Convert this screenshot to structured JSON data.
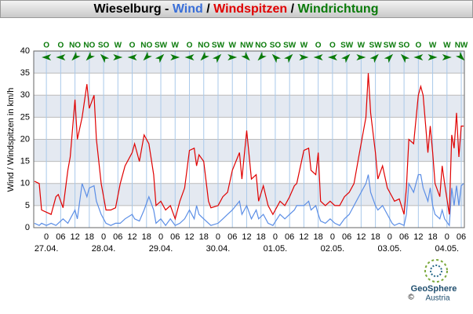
{
  "chart_data": {
    "type": "line",
    "title_parts": [
      {
        "text": "Wieselburg - ",
        "color": "#000000"
      },
      {
        "text": "Wind",
        "color": "#3a6fd8"
      },
      {
        "text": " / ",
        "color": "#000000"
      },
      {
        "text": "Windspitzen",
        "color": "#e00000"
      },
      {
        "text": " / ",
        "color": "#000000"
      },
      {
        "text": "Windrichtung",
        "color": "#0a7a0a"
      }
    ],
    "y_label": "Wind / Windspitzen in km/h",
    "x": [
      -5,
      -3,
      -2,
      0,
      2,
      4,
      5,
      7,
      9,
      10,
      12,
      13,
      15,
      17,
      18,
      20,
      21,
      23,
      25,
      27,
      29,
      31,
      33,
      36,
      37,
      39,
      41,
      43,
      45,
      46,
      48,
      50,
      52,
      54,
      56,
      58,
      60,
      62,
      63,
      64,
      66,
      68,
      69,
      72,
      74,
      76,
      78,
      81,
      82,
      84,
      86,
      88,
      89,
      91,
      93,
      95,
      98,
      100,
      102,
      104,
      105,
      108,
      110,
      111,
      113,
      114,
      115,
      117,
      119,
      121,
      123,
      125,
      127,
      129,
      131,
      133,
      134,
      135,
      136,
      138,
      139,
      141,
      143,
      145,
      146,
      148,
      150,
      151,
      152,
      154,
      156,
      157,
      158,
      160,
      161,
      162,
      163,
      165,
      166,
      167,
      169,
      170,
      171,
      172,
      173,
      174,
      175
    ],
    "series": [
      {
        "name": "Wind",
        "color": "#5b8ee6",
        "values": [
          1,
          0.5,
          1,
          0.5,
          1,
          0.5,
          1,
          2,
          1,
          2,
          4,
          2,
          10,
          7,
          9,
          9.5,
          6,
          3,
          1,
          0.5,
          1,
          1,
          2,
          3,
          2,
          1.5,
          4,
          7,
          4,
          1,
          2,
          0.5,
          2,
          0.5,
          1,
          2,
          4,
          2,
          5,
          3,
          2,
          1,
          0.5,
          1,
          2,
          3,
          4,
          6,
          3,
          5,
          2,
          4,
          2,
          3,
          1,
          0.5,
          3,
          2,
          3,
          4,
          5,
          5,
          6,
          4,
          5,
          3,
          1.5,
          1,
          2,
          1,
          0.5,
          2,
          3,
          5,
          7,
          9,
          10,
          12,
          8,
          5,
          4,
          5,
          3,
          1,
          0.5,
          1,
          0.5,
          3,
          10,
          8,
          12,
          12,
          9,
          6,
          9,
          5,
          3,
          2,
          4,
          2,
          0.5,
          9,
          5,
          9.5,
          5,
          9.5,
          10
        ]
      },
      {
        "name": "Windspitzen",
        "color": "#e00000",
        "values": [
          10.5,
          10,
          4,
          3.5,
          3,
          7,
          7.5,
          4.5,
          13,
          16,
          29,
          20,
          25,
          32.5,
          27,
          30,
          20,
          10,
          4,
          4,
          4.5,
          10,
          14,
          17,
          19,
          15,
          21,
          19,
          12,
          5,
          6,
          4,
          5,
          2,
          6,
          9,
          17.5,
          18,
          14,
          16.5,
          15,
          6,
          4.5,
          5,
          7,
          8,
          13,
          17,
          11,
          22,
          11,
          12,
          6,
          9.5,
          5,
          3,
          6,
          5,
          7,
          9.5,
          10,
          17.5,
          18,
          13,
          12,
          17,
          6,
          5,
          6,
          5,
          5,
          7,
          8,
          10,
          16,
          22,
          25,
          35,
          26,
          17,
          11,
          14,
          9,
          7,
          6,
          6.5,
          3,
          9,
          20,
          19,
          30,
          32,
          30,
          17,
          23,
          17,
          10,
          7,
          14,
          10,
          3,
          21,
          18,
          26,
          16,
          23,
          23
        ]
      }
    ],
    "xlim": [
      -5.3,
      175.3
    ],
    "xticks": [
      0,
      {
        "value": 6,
        "label": "06"
      },
      {
        "value": 12,
        "label": "12"
      },
      {
        "value": 18,
        "label": "18"
      },
      {
        "value": 24,
        "label": "0"
      },
      {
        "value": 30,
        "label": "06"
      },
      {
        "value": 36,
        "label": "12"
      },
      {
        "value": 42,
        "label": "18"
      },
      {
        "value": 48,
        "label": "0"
      },
      {
        "value": 54,
        "label": "06"
      },
      {
        "value": 60,
        "label": "12"
      },
      {
        "value": 66,
        "label": "18"
      },
      {
        "value": 72,
        "label": "0"
      },
      {
        "value": 78,
        "label": "06"
      },
      {
        "value": 84,
        "label": "12"
      },
      {
        "value": 90,
        "label": "18"
      },
      {
        "value": 96,
        "label": "0"
      },
      {
        "value": 102,
        "label": "06"
      },
      {
        "value": 108,
        "label": "12"
      },
      {
        "value": 114,
        "label": "18"
      },
      {
        "value": 120,
        "label": "0"
      },
      {
        "value": 126,
        "label": "06"
      },
      {
        "value": 132,
        "label": "12"
      },
      {
        "value": 138,
        "label": "18"
      },
      {
        "value": 144,
        "label": "0"
      },
      {
        "value": 150,
        "label": "06"
      },
      {
        "value": 156,
        "label": "12"
      },
      {
        "value": 162,
        "label": "18"
      },
      {
        "value": 168,
        "label": "0"
      },
      {
        "value": 174,
        "label": "06"
      }
    ],
    "day_labels": [
      {
        "value": 0,
        "label": "27.04."
      },
      {
        "value": 24,
        "label": "28.04."
      },
      {
        "value": 48,
        "label": "29.04."
      },
      {
        "value": 72,
        "label": "30.04."
      },
      {
        "value": 96,
        "label": "01.05."
      },
      {
        "value": 120,
        "label": "02.05."
      },
      {
        "value": 144,
        "label": "03.05."
      },
      {
        "value": 168,
        "label": "04.05."
      }
    ],
    "ylim": [
      0,
      40
    ],
    "yticks": [
      0,
      5,
      10,
      15,
      20,
      25,
      30,
      35,
      40
    ],
    "grid": true,
    "wind_direction": {
      "color": "#0a7a0a",
      "x": [
        0,
        6,
        12,
        18,
        24,
        30,
        36,
        42,
        48,
        54,
        60,
        66,
        72,
        78,
        84,
        90,
        96,
        102,
        108,
        114,
        120,
        126,
        132,
        138,
        144,
        150,
        156,
        162,
        168,
        174
      ],
      "labels": [
        "O",
        "O",
        "NO",
        "NO",
        "SO",
        "W",
        "O",
        "NO",
        "SW",
        "W",
        "O",
        "NO",
        "SW",
        "W",
        "NW",
        "NO",
        "SO",
        "SW",
        "W",
        "O",
        "O",
        "SW",
        "W",
        "SW",
        "SW",
        "SO",
        "O",
        "W",
        "W",
        "NW"
      ]
    },
    "logo_name": "GeoSphere",
    "logo_sub": "Austria",
    "copyright": "©"
  }
}
